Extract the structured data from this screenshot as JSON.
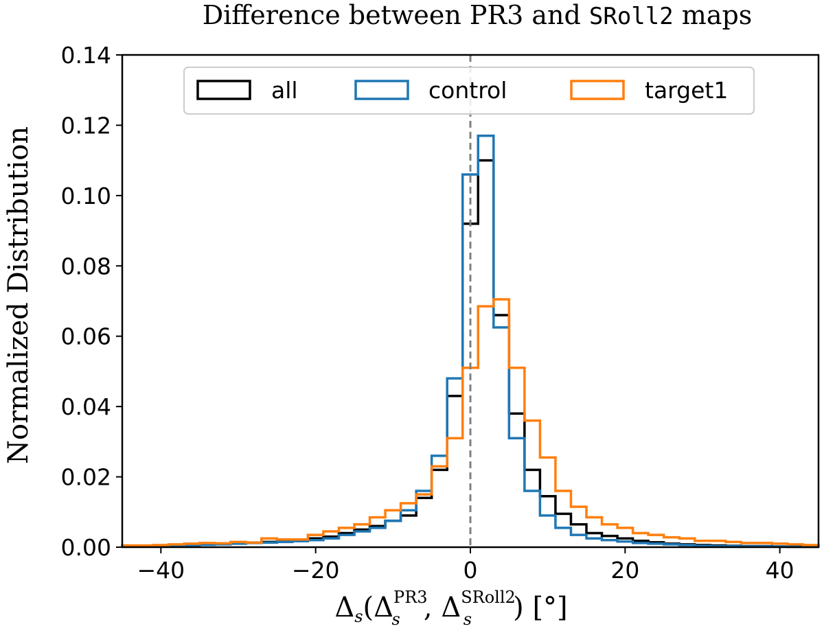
{
  "chart_data": {
    "type": "histogram-step",
    "title_parts": [
      "Difference between PR3 and ",
      "SRoll2",
      " maps"
    ],
    "ylabel": "Normalized Distribution",
    "xlabel": "Δs(ΔsPR3, ΔsSRoll2) [°]",
    "xlabel_parts": {
      "delta": "Δ",
      "sub": "s",
      "sup1": "PR3",
      "sup2": "SRoll2",
      "unit": "[°]"
    },
    "xlim": [
      -45,
      45
    ],
    "ylim": [
      0,
      0.14
    ],
    "xticks": [
      -40,
      -20,
      0,
      20,
      40
    ],
    "xtick_labels": [
      "−40",
      "−20",
      "0",
      "20",
      "40"
    ],
    "yticks": [
      0,
      0.02,
      0.04,
      0.06,
      0.08,
      0.1,
      0.12,
      0.14
    ],
    "ytick_labels": [
      "0.00",
      "0.02",
      "0.04",
      "0.06",
      "0.08",
      "0.10",
      "0.12",
      "0.14"
    ],
    "reference_line": {
      "x": 0,
      "style": "dashed",
      "color": "#808080"
    },
    "bin_edges": [
      -45,
      -43,
      -41,
      -39,
      -37,
      -35,
      -33,
      -31,
      -29,
      -27,
      -25,
      -23,
      -21,
      -19,
      -17,
      -15,
      -13,
      -11,
      -9,
      -7,
      -5,
      -3,
      -1,
      1,
      3,
      5,
      7,
      9,
      11,
      13,
      15,
      17,
      19,
      21,
      23,
      25,
      27,
      29,
      31,
      33,
      35,
      37,
      39,
      41,
      43,
      45
    ],
    "legend": {
      "position": "top",
      "entries": [
        "all",
        "control",
        "target1"
      ]
    },
    "series": [
      {
        "name": "all",
        "color": "#000000",
        "values": [
          0.0003,
          0.0003,
          0.0004,
          0.0004,
          0.0006,
          0.0008,
          0.001,
          0.0012,
          0.0013,
          0.0015,
          0.0017,
          0.002,
          0.0025,
          0.003,
          0.004,
          0.005,
          0.006,
          0.0075,
          0.009,
          0.014,
          0.022,
          0.043,
          0.092,
          0.11,
          0.066,
          0.038,
          0.022,
          0.0145,
          0.0095,
          0.0065,
          0.004,
          0.0032,
          0.0025,
          0.0018,
          0.0014,
          0.001,
          0.0008,
          0.0006,
          0.0005,
          0.0004,
          0.0003,
          0.0003,
          0.0002,
          0.0002,
          0.0002
        ]
      },
      {
        "name": "control",
        "color": "#1f77b4",
        "values": [
          0.0002,
          0.0003,
          0.0003,
          0.0004,
          0.0005,
          0.0007,
          0.0008,
          0.001,
          0.0012,
          0.0013,
          0.0015,
          0.0017,
          0.002,
          0.0025,
          0.0035,
          0.0045,
          0.0055,
          0.0075,
          0.0105,
          0.016,
          0.026,
          0.048,
          0.106,
          0.117,
          0.0625,
          0.031,
          0.016,
          0.009,
          0.0055,
          0.0035,
          0.0025,
          0.002,
          0.0016,
          0.0012,
          0.001,
          0.0008,
          0.0006,
          0.0004,
          0.0003,
          0.0003,
          0.0002,
          0.0002,
          0.0002,
          0.0001,
          0.0001
        ]
      },
      {
        "name": "target1",
        "color": "#ff7f0e",
        "values": [
          0.0005,
          0.0005,
          0.0006,
          0.0008,
          0.001,
          0.0012,
          0.0011,
          0.0015,
          0.0013,
          0.0025,
          0.0022,
          0.0022,
          0.0035,
          0.0045,
          0.0055,
          0.0065,
          0.0085,
          0.0105,
          0.0125,
          0.015,
          0.023,
          0.031,
          0.051,
          0.0685,
          0.0705,
          0.051,
          0.036,
          0.0255,
          0.016,
          0.0115,
          0.0085,
          0.0065,
          0.0055,
          0.004,
          0.0035,
          0.0028,
          0.0025,
          0.0018,
          0.0018,
          0.0015,
          0.0012,
          0.0012,
          0.001,
          0.0008,
          0.0006
        ]
      }
    ]
  }
}
